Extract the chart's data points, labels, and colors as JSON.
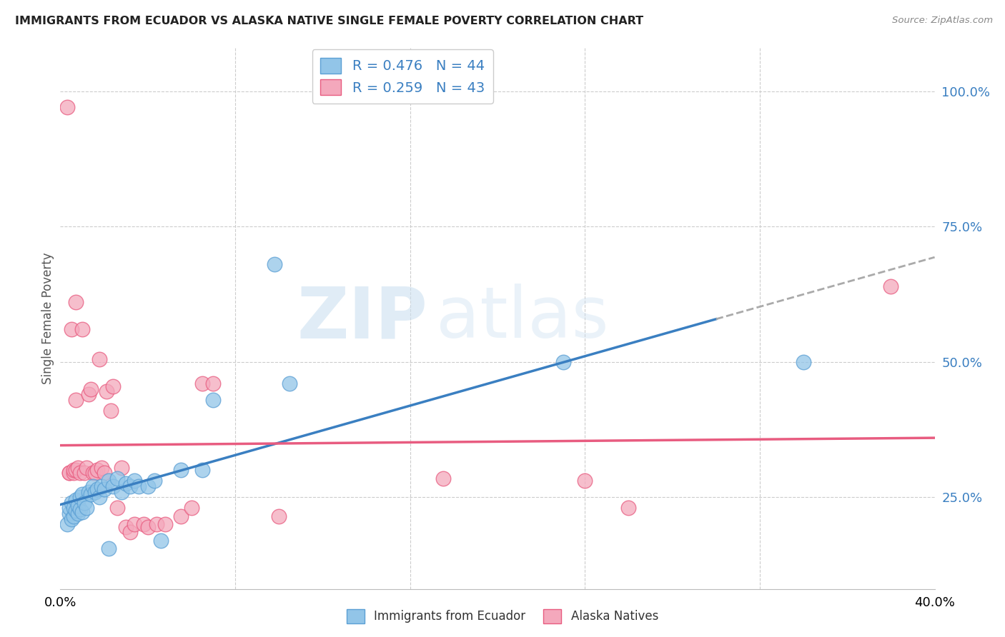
{
  "title": "IMMIGRANTS FROM ECUADOR VS ALASKA NATIVE SINGLE FEMALE POVERTY CORRELATION CHART",
  "source": "Source: ZipAtlas.com",
  "ylabel": "Single Female Poverty",
  "yticks": [
    "25.0%",
    "50.0%",
    "75.0%",
    "100.0%"
  ],
  "ytick_vals": [
    0.25,
    0.5,
    0.75,
    1.0
  ],
  "xmin": 0.0,
  "xmax": 0.4,
  "ymin": 0.08,
  "ymax": 1.08,
  "legend_label1_r": "0.476",
  "legend_label1_n": "44",
  "legend_label2_r": "0.259",
  "legend_label2_n": "43",
  "series1_label": "Immigrants from Ecuador",
  "series2_label": "Alaska Natives",
  "color1": "#92c5e8",
  "color2": "#f4a8bc",
  "color1_edge": "#5b9fd4",
  "color2_edge": "#e85c80",
  "color1_line": "#3a7fc1",
  "color2_line": "#e85c80",
  "background": "#ffffff",
  "grid_color": "#cccccc",
  "watermark_zip": "ZIP",
  "watermark_atlas": "atlas",
  "blue_points": [
    [
      0.003,
      0.2
    ],
    [
      0.004,
      0.22
    ],
    [
      0.004,
      0.23
    ],
    [
      0.005,
      0.21
    ],
    [
      0.005,
      0.24
    ],
    [
      0.006,
      0.215
    ],
    [
      0.006,
      0.23
    ],
    [
      0.007,
      0.225
    ],
    [
      0.007,
      0.245
    ],
    [
      0.008,
      0.22
    ],
    [
      0.008,
      0.235
    ],
    [
      0.009,
      0.228
    ],
    [
      0.009,
      0.25
    ],
    [
      0.01,
      0.222
    ],
    [
      0.01,
      0.255
    ],
    [
      0.011,
      0.24
    ],
    [
      0.012,
      0.23
    ],
    [
      0.013,
      0.26
    ],
    [
      0.014,
      0.255
    ],
    [
      0.015,
      0.27
    ],
    [
      0.016,
      0.26
    ],
    [
      0.017,
      0.265
    ],
    [
      0.018,
      0.25
    ],
    [
      0.019,
      0.27
    ],
    [
      0.02,
      0.265
    ],
    [
      0.022,
      0.28
    ],
    [
      0.022,
      0.155
    ],
    [
      0.024,
      0.27
    ],
    [
      0.026,
      0.285
    ],
    [
      0.028,
      0.26
    ],
    [
      0.03,
      0.275
    ],
    [
      0.032,
      0.27
    ],
    [
      0.034,
      0.28
    ],
    [
      0.036,
      0.27
    ],
    [
      0.04,
      0.27
    ],
    [
      0.043,
      0.28
    ],
    [
      0.046,
      0.17
    ],
    [
      0.055,
      0.3
    ],
    [
      0.065,
      0.3
    ],
    [
      0.07,
      0.43
    ],
    [
      0.098,
      0.68
    ],
    [
      0.105,
      0.46
    ],
    [
      0.23,
      0.5
    ],
    [
      0.34,
      0.5
    ]
  ],
  "pink_points": [
    [
      0.003,
      0.97
    ],
    [
      0.004,
      0.295
    ],
    [
      0.004,
      0.295
    ],
    [
      0.005,
      0.56
    ],
    [
      0.006,
      0.295
    ],
    [
      0.006,
      0.3
    ],
    [
      0.007,
      0.61
    ],
    [
      0.007,
      0.43
    ],
    [
      0.007,
      0.3
    ],
    [
      0.008,
      0.305
    ],
    [
      0.009,
      0.295
    ],
    [
      0.01,
      0.56
    ],
    [
      0.011,
      0.295
    ],
    [
      0.012,
      0.305
    ],
    [
      0.013,
      0.44
    ],
    [
      0.014,
      0.45
    ],
    [
      0.015,
      0.295
    ],
    [
      0.016,
      0.295
    ],
    [
      0.017,
      0.3
    ],
    [
      0.018,
      0.505
    ],
    [
      0.019,
      0.305
    ],
    [
      0.02,
      0.295
    ],
    [
      0.021,
      0.445
    ],
    [
      0.023,
      0.41
    ],
    [
      0.024,
      0.455
    ],
    [
      0.026,
      0.23
    ],
    [
      0.028,
      0.305
    ],
    [
      0.03,
      0.195
    ],
    [
      0.032,
      0.185
    ],
    [
      0.034,
      0.2
    ],
    [
      0.038,
      0.2
    ],
    [
      0.04,
      0.195
    ],
    [
      0.044,
      0.2
    ],
    [
      0.048,
      0.2
    ],
    [
      0.055,
      0.215
    ],
    [
      0.06,
      0.23
    ],
    [
      0.065,
      0.46
    ],
    [
      0.07,
      0.46
    ],
    [
      0.1,
      0.215
    ],
    [
      0.175,
      0.285
    ],
    [
      0.24,
      0.28
    ],
    [
      0.26,
      0.23
    ],
    [
      0.38,
      0.64
    ]
  ]
}
